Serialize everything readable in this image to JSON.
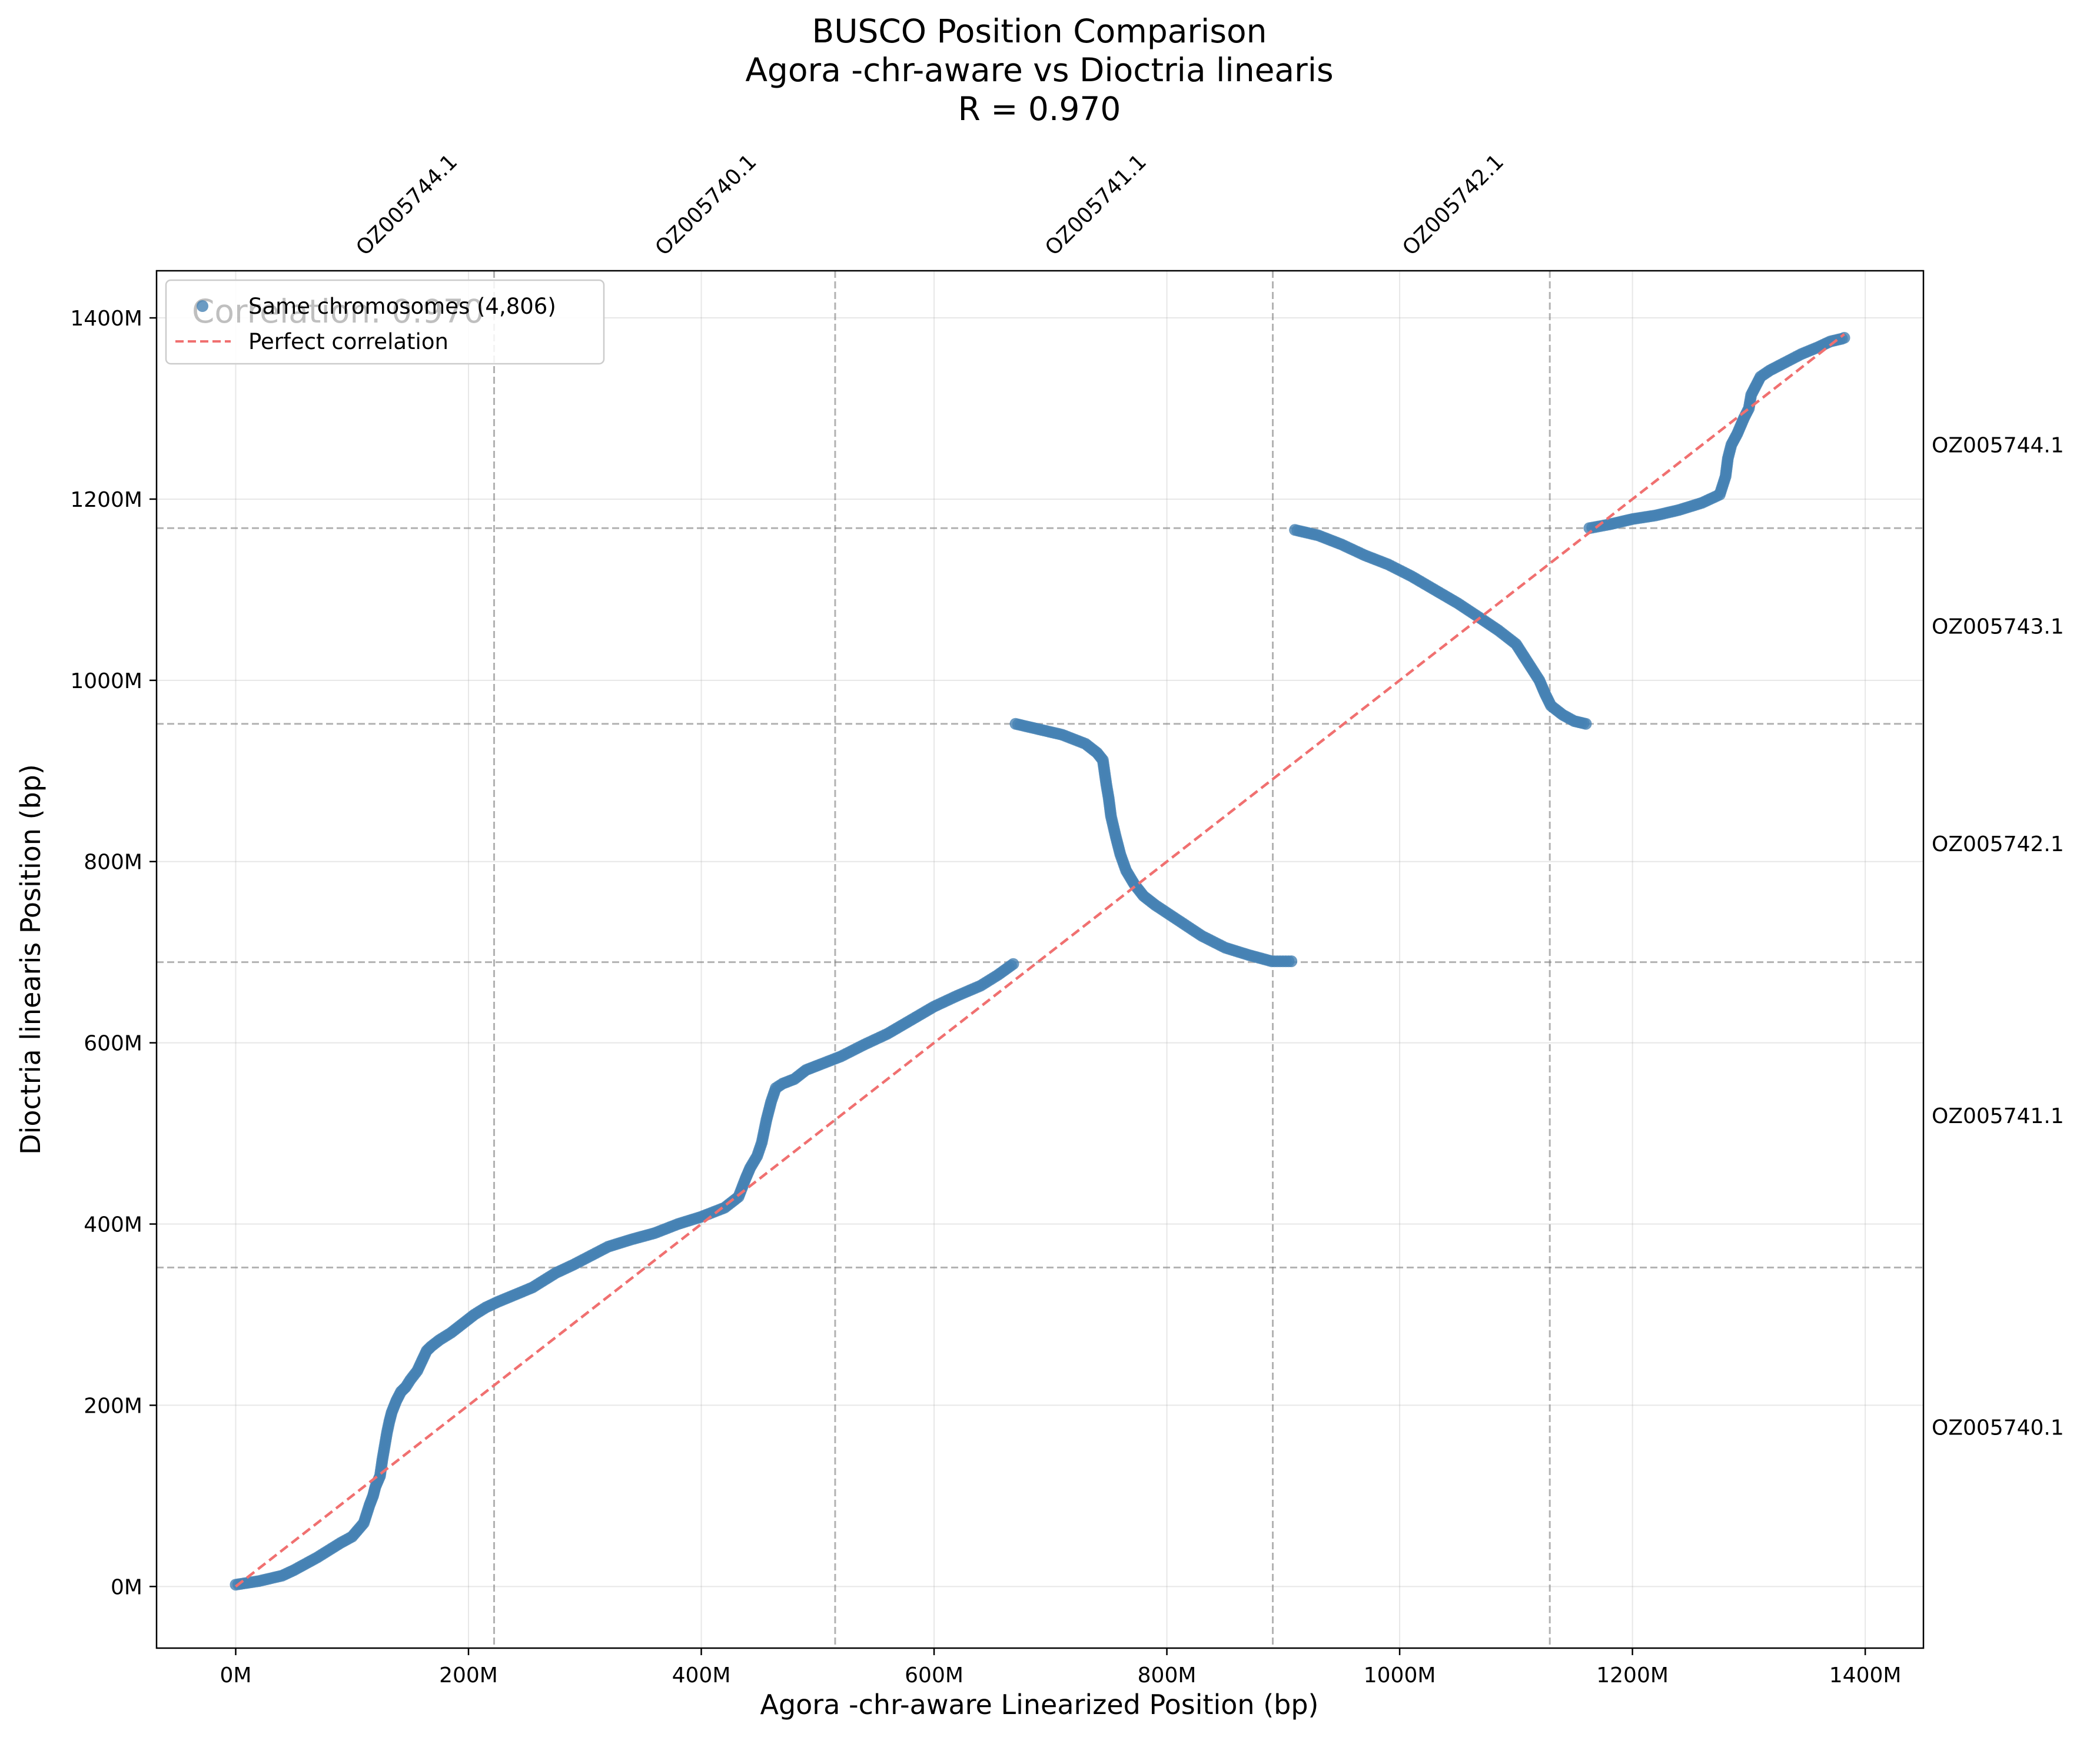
{
  "chart_data": {
    "type": "scatter",
    "title": "BUSCO Position Comparison",
    "subtitle": "Agora -chr-aware  vs Dioctria linearis",
    "correlation_label": "R = 0.970",
    "overlap_text": "Correlation: 0.970",
    "xlabel": "Agora -chr-aware  Linearized Position (bp)",
    "ylabel": "Dioctria linearis Position (bp)",
    "xlim": [
      -68,
      1450
    ],
    "ylim": [
      -68,
      1452
    ],
    "x_ticks": [
      {
        "value": 0,
        "label": "0M"
      },
      {
        "value": 200,
        "label": "200M"
      },
      {
        "value": 400,
        "label": "400M"
      },
      {
        "value": 600,
        "label": "600M"
      },
      {
        "value": 800,
        "label": "800M"
      },
      {
        "value": 1000,
        "label": "1000M"
      },
      {
        "value": 1200,
        "label": "1200M"
      },
      {
        "value": 1400,
        "label": "1400M"
      }
    ],
    "y_ticks": [
      {
        "value": 0,
        "label": "0M"
      },
      {
        "value": 200,
        "label": "200M"
      },
      {
        "value": 400,
        "label": "400M"
      },
      {
        "value": 600,
        "label": "600M"
      },
      {
        "value": 800,
        "label": "800M"
      },
      {
        "value": 1000,
        "label": "1000M"
      },
      {
        "value": 1200,
        "label": "1200M"
      },
      {
        "value": 1400,
        "label": "1400M"
      }
    ],
    "grid": true,
    "legend_position": "top-left",
    "x_boundaries": [
      222,
      515,
      891,
      1129
    ],
    "y_boundaries": [
      352,
      689,
      952,
      1168
    ],
    "x_chromosome_labels": [
      {
        "position": 111,
        "label": "OZ005744.1"
      },
      {
        "position": 368,
        "label": "OZ005740.1"
      },
      {
        "position": 703,
        "label": "OZ005741.1"
      },
      {
        "position": 1010,
        "label": "OZ005742.1"
      }
    ],
    "y_chromosome_labels": [
      {
        "position": 176,
        "label": "OZ005740.1"
      },
      {
        "position": 520,
        "label": "OZ005741.1"
      },
      {
        "position": 820,
        "label": "OZ005742.1"
      },
      {
        "position": 1060,
        "label": "OZ005743.1"
      },
      {
        "position": 1260,
        "label": "OZ005744.1"
      }
    ],
    "series": [
      {
        "name": "Same chromosomes (4,806)",
        "kind": "scatter",
        "color": "#4682b4",
        "x": [
          0,
          20,
          40,
          50,
          60,
          70,
          80,
          90,
          100,
          110,
          115,
          118,
          120,
          124,
          126,
          128,
          130,
          132,
          134,
          138,
          142,
          146,
          150,
          156,
          164,
          168,
          175,
          185,
          195,
          205,
          215,
          225,
          240,
          255,
          265,
          275,
          290,
          305,
          320,
          340,
          360,
          380,
          400,
          420,
          432,
          438,
          442,
          448,
          452,
          456,
          460,
          464,
          470,
          480,
          490,
          500,
          520,
          540,
          560,
          580,
          600,
          620,
          640,
          655,
          668,
          670,
          690,
          710,
          730,
          740,
          745,
          748,
          750,
          752,
          756,
          760,
          765,
          772,
          780,
          790,
          810,
          830,
          850,
          870,
          890,
          907,
          910,
          930,
          950,
          970,
          990,
          1010,
          1030,
          1050,
          1070,
          1085,
          1100,
          1110,
          1120,
          1125,
          1130,
          1140,
          1150,
          1160,
          1163,
          1180,
          1200,
          1220,
          1240,
          1260,
          1275,
          1280,
          1282,
          1285,
          1290,
          1296,
          1300,
          1302,
          1306,
          1310,
          1318,
          1330,
          1345,
          1360,
          1370,
          1380,
          1382
        ],
        "y": [
          2,
          6,
          12,
          18,
          25,
          32,
          40,
          48,
          55,
          70,
          90,
          100,
          110,
          122,
          140,
          155,
          170,
          182,
          192,
          205,
          215,
          220,
          228,
          238,
          260,
          265,
          272,
          280,
          290,
          300,
          308,
          314,
          322,
          330,
          338,
          346,
          355,
          365,
          375,
          383,
          390,
          400,
          408,
          418,
          430,
          450,
          462,
          475,
          490,
          515,
          535,
          550,
          555,
          560,
          570,
          575,
          585,
          598,
          610,
          625,
          640,
          652,
          663,
          675,
          687,
          952,
          946,
          940,
          930,
          920,
          912,
          885,
          870,
          850,
          828,
          808,
          790,
          775,
          762,
          752,
          735,
          718,
          705,
          697,
          690,
          690,
          1166,
          1160,
          1150,
          1138,
          1128,
          1115,
          1100,
          1085,
          1068,
          1055,
          1040,
          1020,
          1000,
          985,
          972,
          962,
          955,
          952,
          1168,
          1172,
          1178,
          1182,
          1188,
          1196,
          1205,
          1225,
          1245,
          1260,
          1272,
          1290,
          1300,
          1315,
          1325,
          1335,
          1342,
          1350,
          1360,
          1368,
          1374,
          1377,
          1378
        ]
      },
      {
        "name": "Perfect correlation",
        "kind": "line",
        "color": "#f07070",
        "x": [
          0,
          1382
        ],
        "y": [
          0,
          1382
        ]
      }
    ]
  }
}
